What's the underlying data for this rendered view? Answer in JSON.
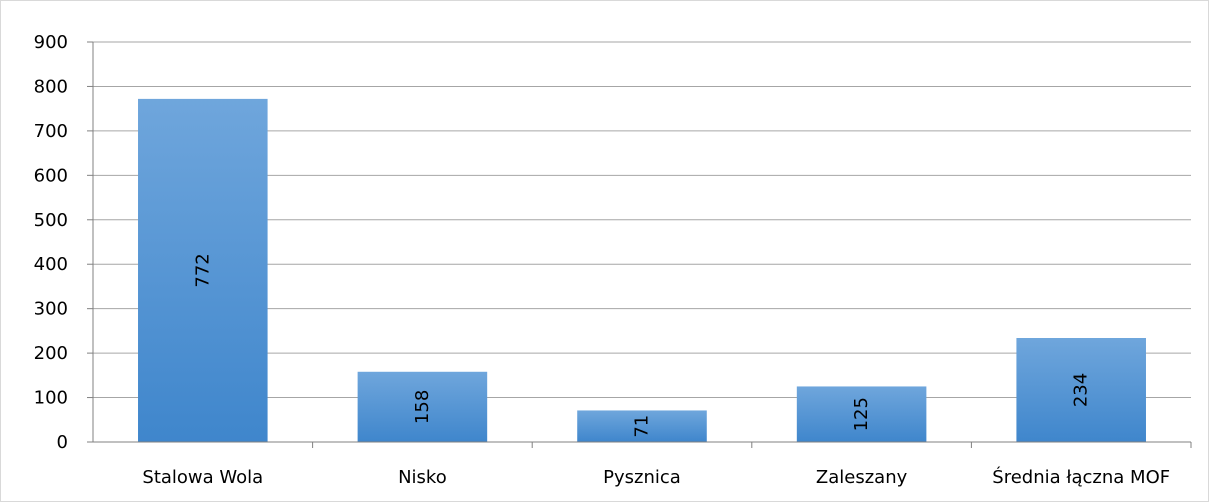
{
  "chart_data": {
    "type": "bar",
    "categories": [
      "Stalowa Wola",
      "Nisko",
      "Pysznica",
      "Zaleszany",
      "Średnia łączna MOF"
    ],
    "values": [
      772,
      158,
      71,
      125,
      234
    ],
    "data_labels": [
      "772",
      "158",
      "71",
      "125",
      "234"
    ],
    "yticks": [
      "0",
      "100",
      "200",
      "300",
      "400",
      "500",
      "600",
      "700",
      "800",
      "900"
    ],
    "ylim": [
      0,
      900
    ],
    "grid": true,
    "legend": "none",
    "title": "",
    "xlabel": "",
    "ylabel": "",
    "colors": {
      "bar_top": "#6fa6dc",
      "bar_bottom": "#3f86cc",
      "grid": "#a6a6a6",
      "axis": "#808080"
    }
  }
}
